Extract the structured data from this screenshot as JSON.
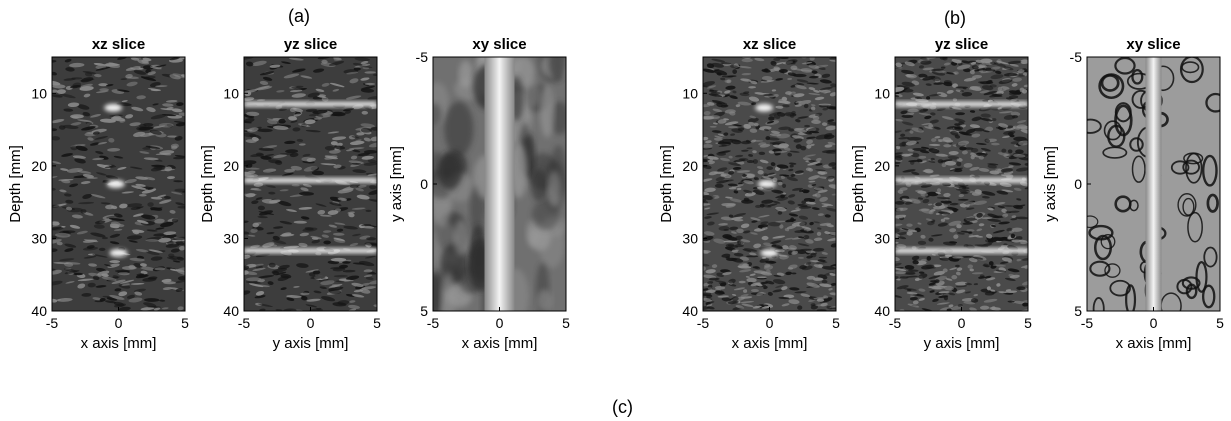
{
  "figure": {
    "panel_a_label": "(a)",
    "panel_b_label": "(b)",
    "panel_c_label": "(c)"
  },
  "chart_data": [
    {
      "type": "heatmap",
      "group": "a",
      "title": "xz slice",
      "xlabel": "x axis [mm]",
      "ylabel": "Depth [mm]",
      "xlim": [
        -5,
        5
      ],
      "ylim": [
        5,
        40
      ],
      "y_reversed": true,
      "xticks": [
        -5,
        0,
        5
      ],
      "yticks": [
        10,
        20,
        30,
        40
      ],
      "speckle": "coarse",
      "targets": [
        {
          "kind": "point",
          "x": -0.4,
          "y": 12
        },
        {
          "kind": "point",
          "x": -0.2,
          "y": 22.5
        },
        {
          "kind": "point",
          "x": 0,
          "y": 32
        }
      ]
    },
    {
      "type": "heatmap",
      "group": "a",
      "title": "yz slice",
      "xlabel": "y axis [mm]",
      "ylabel": "Depth [mm]",
      "xlim": [
        -5,
        5
      ],
      "ylim": [
        5,
        40
      ],
      "y_reversed": true,
      "xticks": [
        -5,
        0,
        5
      ],
      "yticks": [
        10,
        20,
        30,
        40
      ],
      "speckle": "coarse",
      "targets": [
        {
          "kind": "hline",
          "y": 11.5
        },
        {
          "kind": "hline",
          "y": 22
        },
        {
          "kind": "hline",
          "y": 31.7
        }
      ]
    },
    {
      "type": "heatmap",
      "group": "a",
      "title": "xy slice",
      "xlabel": "x axis [mm]",
      "ylabel": "y axis [mm]",
      "xlim": [
        -5,
        5
      ],
      "ylim": [
        -5,
        5
      ],
      "y_reversed": true,
      "xticks": [
        -5,
        0,
        5
      ],
      "yticks": [
        -5,
        0,
        5
      ],
      "speckle": "smooth",
      "targets": [
        {
          "kind": "vline",
          "x": 0
        }
      ]
    },
    {
      "type": "heatmap",
      "group": "b",
      "title": "xz slice",
      "xlabel": "x axis [mm]",
      "ylabel": "Depth [mm]",
      "xlim": [
        -5,
        5
      ],
      "ylim": [
        5,
        40
      ],
      "y_reversed": true,
      "xticks": [
        -5,
        0,
        5
      ],
      "yticks": [
        10,
        20,
        30,
        40
      ],
      "speckle": "fine",
      "targets": [
        {
          "kind": "point",
          "x": -0.4,
          "y": 12
        },
        {
          "kind": "point",
          "x": -0.2,
          "y": 22.5
        },
        {
          "kind": "point",
          "x": 0,
          "y": 32
        }
      ]
    },
    {
      "type": "heatmap",
      "group": "b",
      "title": "yz slice",
      "xlabel": "y axis [mm]",
      "ylabel": "Depth [mm]",
      "xlim": [
        -5,
        5
      ],
      "ylim": [
        5,
        40
      ],
      "y_reversed": true,
      "xticks": [
        -5,
        0,
        5
      ],
      "yticks": [
        10,
        20,
        30,
        40
      ],
      "speckle": "fine",
      "targets": [
        {
          "kind": "hline",
          "y": 11.5
        },
        {
          "kind": "hline",
          "y": 22
        },
        {
          "kind": "hline",
          "y": 31.7
        }
      ]
    },
    {
      "type": "heatmap",
      "group": "b",
      "title": "xy slice",
      "xlabel": "x axis [mm]",
      "ylabel": "y axis [mm]",
      "xlim": [
        -5,
        5
      ],
      "ylim": [
        -5,
        5
      ],
      "y_reversed": true,
      "xticks": [
        -5,
        0,
        5
      ],
      "yticks": [
        -5,
        0,
        5
      ],
      "speckle": "loops",
      "targets": [
        {
          "kind": "vline",
          "x": 0
        }
      ]
    }
  ]
}
